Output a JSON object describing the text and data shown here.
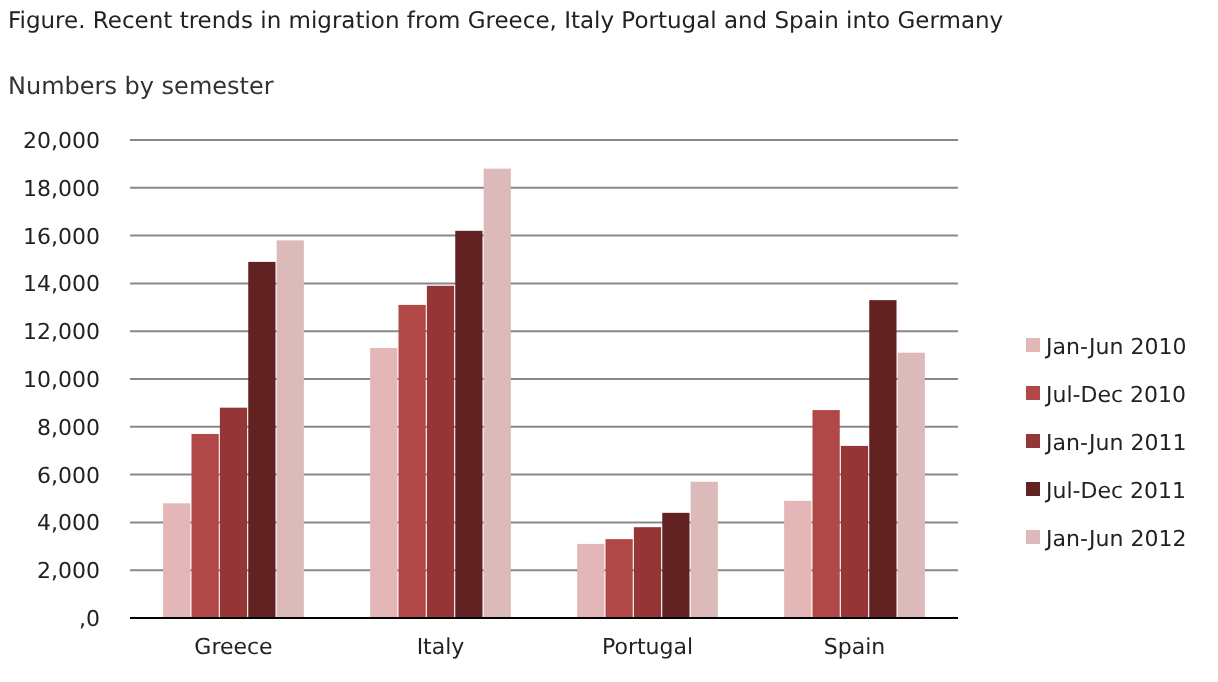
{
  "chart_data": {
    "type": "bar",
    "title": "Figure. Recent trends in migration from Greece, Italy Portugal and Spain into Germany",
    "subtitle": "Numbers by semester",
    "categories": [
      "Greece",
      "Italy",
      "Portugal",
      "Spain"
    ],
    "series": [
      {
        "name": "Jan-Jun 2010",
        "color": "#e3b7b7",
        "values": [
          4800,
          11300,
          3100,
          4900
        ]
      },
      {
        "name": "Jul-Dec 2010",
        "color": "#b04848",
        "values": [
          7700,
          13100,
          3300,
          8700
        ]
      },
      {
        "name": "Jan-Jun 2011",
        "color": "#953535",
        "values": [
          8800,
          13900,
          3800,
          7200
        ]
      },
      {
        "name": "Jul-Dec 2011",
        "color": "#632222",
        "values": [
          14900,
          16200,
          4400,
          13300
        ]
      },
      {
        "name": "Jan-Jun 2012",
        "color": "#dcbaba",
        "values": [
          15800,
          18800,
          5700,
          11100
        ]
      }
    ],
    "ylim": [
      0,
      20000
    ],
    "yticks": [
      {
        "value": 0,
        "label": ",0"
      },
      {
        "value": 2000,
        "label": "2,000"
      },
      {
        "value": 4000,
        "label": "4,000"
      },
      {
        "value": 6000,
        "label": "6,000"
      },
      {
        "value": 8000,
        "label": "8,000"
      },
      {
        "value": 10000,
        "label": "10,000"
      },
      {
        "value": 12000,
        "label": "12,000"
      },
      {
        "value": 14000,
        "label": "14,000"
      },
      {
        "value": 16000,
        "label": "16,000"
      },
      {
        "value": 18000,
        "label": "18,000"
      },
      {
        "value": 20000,
        "label": "20,000"
      }
    ],
    "grid": "y",
    "legend": "right"
  }
}
